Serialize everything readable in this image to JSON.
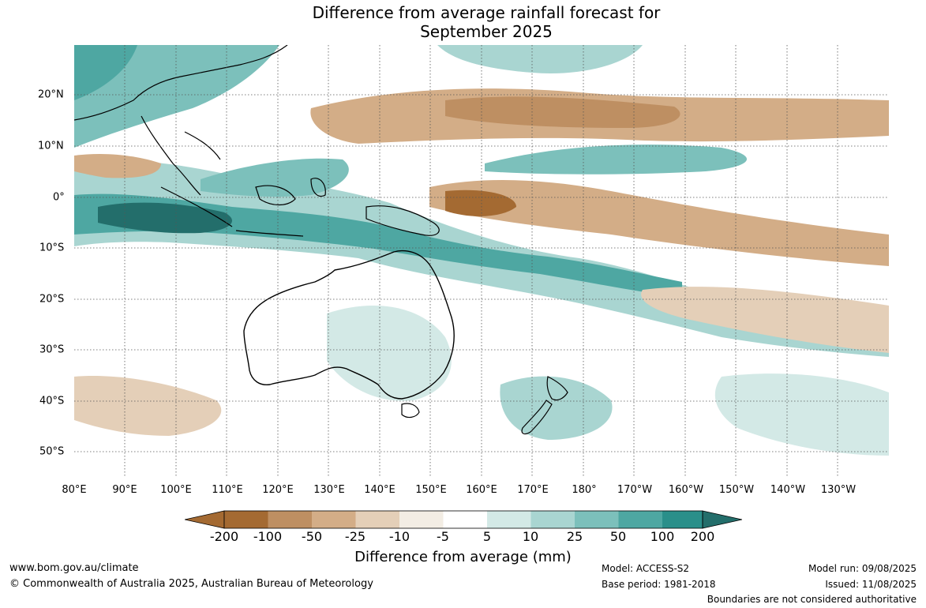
{
  "title": {
    "line1": "Difference from average rainfall forecast for",
    "line2": "September 2025"
  },
  "map": {
    "longitude_labels": [
      "80°E",
      "90°E",
      "100°E",
      "110°E",
      "120°E",
      "130°E",
      "140°E",
      "150°E",
      "160°E",
      "170°E",
      "180°",
      "170°W",
      "160°W",
      "150°W",
      "140°W",
      "130°W"
    ],
    "latitude_labels": [
      "20°N",
      "10°N",
      "0°",
      "10°S",
      "20°S",
      "30°S",
      "40°S",
      "50°S"
    ],
    "colors": {
      "-200": "#a46a32",
      "-100": "#be8f62",
      "-50": "#d3ad87",
      "-25": "#e4cfb8",
      "-10": "#f3ede4",
      "neutral": "#ffffff",
      "10": "#d3e9e6",
      "25": "#a9d5d1",
      "50": "#7cc0bb",
      "100": "#4ea7a2",
      "200": "#2a8f8a",
      "extreme": "#236e6b"
    }
  },
  "colorbar": {
    "ticks": [
      "-200",
      "-100",
      "-50",
      "-25",
      "-10",
      "-5",
      "5",
      "10",
      "25",
      "50",
      "100",
      "200"
    ],
    "label": "Difference from average (mm)"
  },
  "footer": {
    "website": "www.bom.gov.au/climate",
    "copyright": "© Commonwealth of Australia 2025, Australian Bureau of Meteorology",
    "model": "Model: ACCESS-S2",
    "base_period": "Base period: 1981-2018",
    "model_run": "Model run: 09/08/2025",
    "issued": "Issued: 11/08/2025",
    "disclaimer": "Boundaries are not considered authoritative"
  }
}
